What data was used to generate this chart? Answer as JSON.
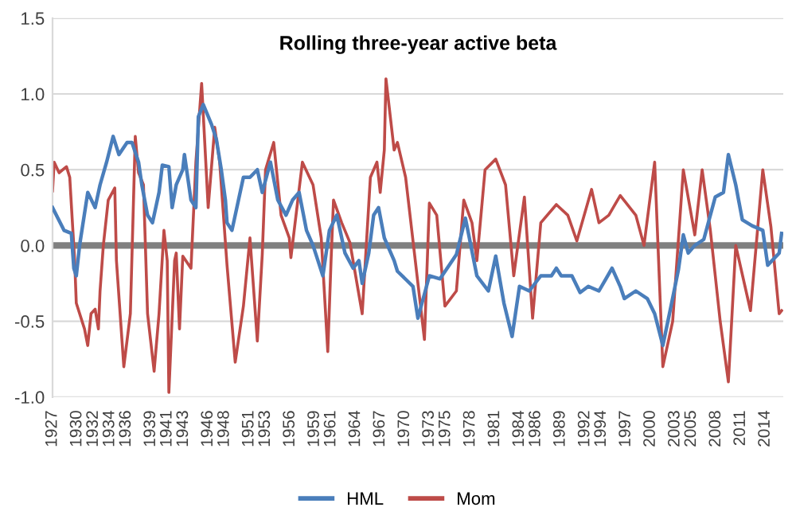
{
  "chart_data": {
    "type": "line",
    "title": "Rolling three-year active beta",
    "xlim": [
      1927,
      2016.2
    ],
    "xticks": [
      1927,
      1930,
      1932,
      1934,
      1936,
      1939,
      1941,
      1943,
      1946,
      1948,
      1951,
      1953,
      1956,
      1959,
      1961,
      1964,
      1967,
      1970,
      1973,
      1975,
      1978,
      1981,
      1984,
      1986,
      1989,
      1992,
      1994,
      1997,
      2000,
      2003,
      2005,
      2008,
      2011,
      2014
    ],
    "ylim": [
      -1.0,
      1.5
    ],
    "yticks": [
      {
        "value": -1.0,
        "label": "-1.0"
      },
      {
        "value": -0.5,
        "label": "-0.5"
      },
      {
        "value": 0.0,
        "label": "0.0"
      },
      {
        "value": 0.5,
        "label": "0.5"
      },
      {
        "value": 1.0,
        "label": "1.0"
      },
      {
        "value": 1.5,
        "label": "1.5"
      }
    ],
    "grid": "y",
    "legend": "bottom",
    "ref_lines": [
      {
        "axis": "y",
        "value": 0,
        "color": "#808080"
      }
    ],
    "series": [
      {
        "name": "HML",
        "color": "#4a7ebb",
        "x": [
          1927.0,
          1928.4,
          1929.3,
          1929.6,
          1929.9,
          1930.3,
          1931.3,
          1932.2,
          1932.8,
          1933.6,
          1934.4,
          1935.1,
          1936.1,
          1936.7,
          1937.5,
          1937.9,
          1938.6,
          1939.2,
          1940.0,
          1940.4,
          1941.2,
          1941.6,
          1942.1,
          1942.9,
          1943.1,
          1943.9,
          1944.5,
          1944.8,
          1945.4,
          1946.4,
          1947.0,
          1947.6,
          1948.1,
          1948.3,
          1948.9,
          1949.7,
          1950.3,
          1951.1,
          1952.0,
          1952.6,
          1953.6,
          1954.5,
          1955.5,
          1956.3,
          1957.1,
          1958.0,
          1958.8,
          1959.4,
          1960.0,
          1960.8,
          1961.7,
          1962.7,
          1963.7,
          1964.4,
          1964.8,
          1965.6,
          1966.2,
          1966.8,
          1967.5,
          1968.7,
          1969.1,
          1971.0,
          1971.6,
          1973.0,
          1974.3,
          1976.3,
          1977.4,
          1978.8,
          1980.2,
          1981.1,
          1982.1,
          1983.1,
          1984.0,
          1985.2,
          1986.6,
          1987.9,
          1988.5,
          1989.1,
          1990.4,
          1991.4,
          1992.4,
          1993.7,
          1995.3,
          1996.3,
          1996.8,
          1998.2,
          1999.6,
          2000.5,
          2001.5,
          2002.5,
          2003.4,
          2004.0,
          2004.6,
          2005.4,
          2006.5,
          2007.9,
          2008.9,
          2009.5,
          2010.4,
          2011.2,
          2012.4,
          2013.7,
          2014.3,
          2015.7,
          2016.0
        ],
        "values": [
          0.25,
          0.1,
          0.08,
          -0.15,
          -0.2,
          0.0,
          0.35,
          0.25,
          0.4,
          0.55,
          0.72,
          0.6,
          0.68,
          0.68,
          0.55,
          0.4,
          0.2,
          0.15,
          0.35,
          0.53,
          0.52,
          0.25,
          0.4,
          0.5,
          0.6,
          0.3,
          0.25,
          0.85,
          0.93,
          0.8,
          0.7,
          0.5,
          0.3,
          0.15,
          0.1,
          0.3,
          0.45,
          0.45,
          0.5,
          0.35,
          0.55,
          0.3,
          0.2,
          0.3,
          0.35,
          0.1,
          0.0,
          -0.1,
          -0.2,
          0.1,
          0.2,
          -0.05,
          -0.15,
          -0.1,
          -0.25,
          -0.05,
          0.2,
          0.25,
          0.05,
          -0.1,
          -0.17,
          -0.27,
          -0.48,
          -0.2,
          -0.22,
          -0.06,
          0.18,
          -0.2,
          -0.3,
          -0.07,
          -0.38,
          -0.6,
          -0.27,
          -0.3,
          -0.2,
          -0.2,
          -0.15,
          -0.2,
          -0.2,
          -0.31,
          -0.27,
          -0.3,
          -0.15,
          -0.27,
          -0.35,
          -0.3,
          -0.35,
          -0.45,
          -0.66,
          -0.4,
          -0.16,
          0.07,
          -0.05,
          0.0,
          0.04,
          0.32,
          0.35,
          0.6,
          0.4,
          0.17,
          0.13,
          0.1,
          -0.13,
          -0.05,
          0.08
        ]
      },
      {
        "name": "Mom",
        "color": "#be4b48",
        "x": [
          1927.0,
          1927.2,
          1927.8,
          1928.7,
          1929.1,
          1929.7,
          1929.9,
          1930.9,
          1931.3,
          1931.7,
          1932.2,
          1932.6,
          1932.8,
          1933.2,
          1933.8,
          1934.6,
          1934.8,
          1935.7,
          1936.5,
          1937.1,
          1937.5,
          1938.1,
          1938.6,
          1939.4,
          1940.0,
          1940.6,
          1941.0,
          1941.2,
          1941.9,
          1942.1,
          1942.5,
          1942.9,
          1943.9,
          1944.5,
          1945.2,
          1946.0,
          1946.8,
          1947.4,
          1948.3,
          1949.3,
          1950.3,
          1951.1,
          1952.0,
          1952.6,
          1953.0,
          1954.0,
          1954.9,
          1955.9,
          1956.1,
          1957.5,
          1958.8,
          1959.8,
          1960.6,
          1961.0,
          1961.3,
          1962.3,
          1963.3,
          1964.8,
          1965.8,
          1966.6,
          1967.0,
          1967.5,
          1967.7,
          1968.7,
          1969.1,
          1970.1,
          1972.4,
          1973.0,
          1973.9,
          1974.9,
          1976.3,
          1977.2,
          1978.2,
          1978.8,
          1979.8,
          1981.1,
          1982.3,
          1983.3,
          1984.6,
          1985.6,
          1986.6,
          1988.5,
          1989.9,
          1991.0,
          1992.8,
          1993.7,
          1994.9,
          1996.3,
          1998.2,
          1999.2,
          2000.5,
          2001.5,
          2002.7,
          2004.0,
          2005.4,
          2006.3,
          2007.3,
          2008.5,
          2009.5,
          2010.4,
          2012.2,
          2013.7,
          2014.7,
          2015.7,
          2016.0
        ],
        "values": [
          0.36,
          0.55,
          0.48,
          0.52,
          0.45,
          -0.1,
          -0.38,
          -0.55,
          -0.66,
          -0.45,
          -0.42,
          -0.55,
          -0.3,
          0.0,
          0.3,
          0.38,
          -0.1,
          -0.8,
          -0.45,
          0.72,
          0.48,
          0.4,
          -0.45,
          -0.83,
          -0.45,
          0.1,
          -0.1,
          -0.97,
          -0.1,
          -0.05,
          -0.55,
          -0.07,
          -0.15,
          0.55,
          1.07,
          0.25,
          0.78,
          0.55,
          -0.13,
          -0.77,
          -0.4,
          0.05,
          -0.63,
          -0.06,
          0.5,
          0.68,
          0.2,
          0.05,
          -0.08,
          0.55,
          0.4,
          0.05,
          -0.7,
          -0.1,
          0.3,
          0.15,
          0.02,
          -0.45,
          0.45,
          0.55,
          0.35,
          0.63,
          1.1,
          0.63,
          0.68,
          0.45,
          -0.62,
          0.28,
          0.2,
          -0.4,
          -0.3,
          0.3,
          0.15,
          -0.1,
          0.5,
          0.57,
          0.4,
          -0.2,
          0.32,
          -0.48,
          0.15,
          0.27,
          0.2,
          0.03,
          0.37,
          0.15,
          0.2,
          0.33,
          0.2,
          0.0,
          0.55,
          -0.8,
          -0.5,
          0.5,
          0.07,
          0.5,
          0.1,
          -0.5,
          -0.9,
          0.0,
          -0.43,
          0.5,
          0.12,
          -0.45,
          -0.43
        ]
      }
    ]
  }
}
